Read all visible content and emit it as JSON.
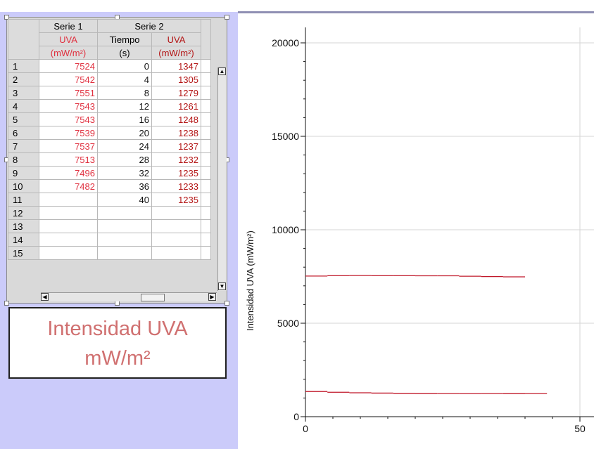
{
  "table": {
    "headers": {
      "serie1": "Serie 1",
      "serie2": "Serie 2",
      "col1_top": "UVA",
      "col1_bottom": "(mW/m²)",
      "col2_top": "Tiempo",
      "col2_bottom": "(s)",
      "col3_top": "UVA",
      "col3_bottom": "(mW/m²)"
    },
    "rows": [
      {
        "n": "1",
        "s1": "7524",
        "t": "0",
        "s2": "1347"
      },
      {
        "n": "2",
        "s1": "7542",
        "t": "4",
        "s2": "1305"
      },
      {
        "n": "3",
        "s1": "7551",
        "t": "8",
        "s2": "1279"
      },
      {
        "n": "4",
        "s1": "7543",
        "t": "12",
        "s2": "1261"
      },
      {
        "n": "5",
        "s1": "7543",
        "t": "16",
        "s2": "1248"
      },
      {
        "n": "6",
        "s1": "7539",
        "t": "20",
        "s2": "1238"
      },
      {
        "n": "7",
        "s1": "7537",
        "t": "24",
        "s2": "1237"
      },
      {
        "n": "8",
        "s1": "7513",
        "t": "28",
        "s2": "1232"
      },
      {
        "n": "9",
        "s1": "7496",
        "t": "32",
        "s2": "1235"
      },
      {
        "n": "10",
        "s1": "7482",
        "t": "36",
        "s2": "1233"
      },
      {
        "n": "11",
        "s1": "",
        "t": "40",
        "s2": "1235"
      },
      {
        "n": "12",
        "s1": "",
        "t": "",
        "s2": ""
      },
      {
        "n": "13",
        "s1": "",
        "t": "",
        "s2": ""
      },
      {
        "n": "14",
        "s1": "",
        "t": "",
        "s2": ""
      },
      {
        "n": "15",
        "s1": "",
        "t": "",
        "s2": ""
      }
    ]
  },
  "title_box": {
    "line1": "Intensidad UVA",
    "line2": "mW/m²"
  },
  "colors": {
    "series_line": "#c0182a",
    "panel_bg": "#cbcbfa"
  },
  "chart_data": {
    "type": "line",
    "title": "",
    "xlabel": "",
    "ylabel": "Intensidad UVA (mW/m²)",
    "xlim": [
      0,
      50
    ],
    "ylim": [
      0,
      20000
    ],
    "x_ticks": [
      "0",
      "50"
    ],
    "y_ticks": [
      "0",
      "5000",
      "10000",
      "15000",
      "20000"
    ],
    "grid": true,
    "series": [
      {
        "x": [
          0,
          4,
          8,
          12,
          16,
          20,
          24,
          28,
          32,
          36
        ],
        "values": [
          7524,
          7542,
          7551,
          7543,
          7543,
          7539,
          7537,
          7513,
          7496,
          7482
        ]
      },
      {
        "x": [
          0,
          4,
          8,
          12,
          16,
          20,
          24,
          28,
          32,
          36,
          40
        ],
        "values": [
          1347,
          1305,
          1279,
          1261,
          1248,
          1238,
          1237,
          1232,
          1235,
          1233,
          1235
        ]
      }
    ]
  }
}
